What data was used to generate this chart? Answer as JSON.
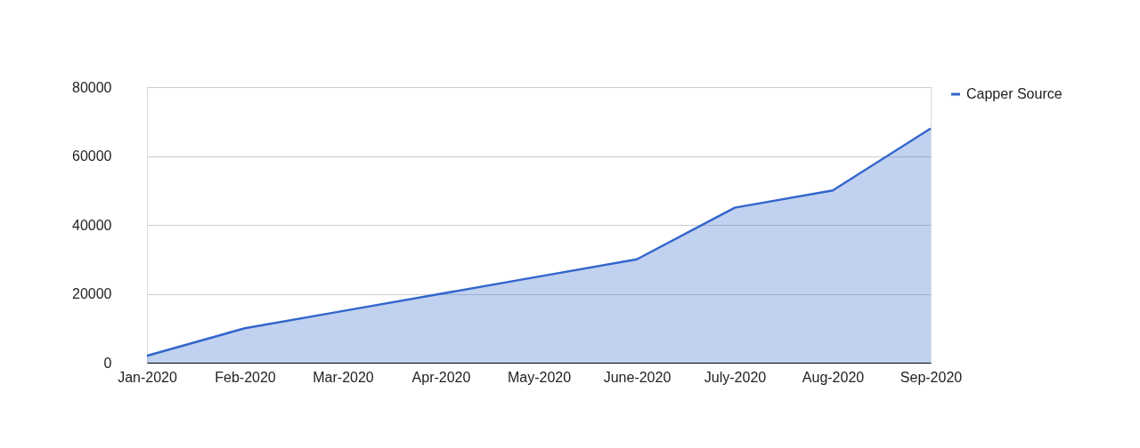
{
  "chart_data": {
    "type": "area",
    "categories": [
      "Jan-2020",
      "Feb-2020",
      "Mar-2020",
      "Apr-2020",
      "May-2020",
      "June-2020",
      "July-2020",
      "Aug-2020",
      "Sep-2020"
    ],
    "series": [
      {
        "name": "Capper Source",
        "color": "#3366cc",
        "values": [
          2000,
          10000,
          15000,
          20000,
          25000,
          30000,
          45000,
          50000,
          68000
        ]
      }
    ],
    "ylim": [
      0,
      80000
    ],
    "yticks": [
      0,
      20000,
      40000,
      60000,
      80000
    ],
    "grid": "y",
    "legend": "top right"
  }
}
